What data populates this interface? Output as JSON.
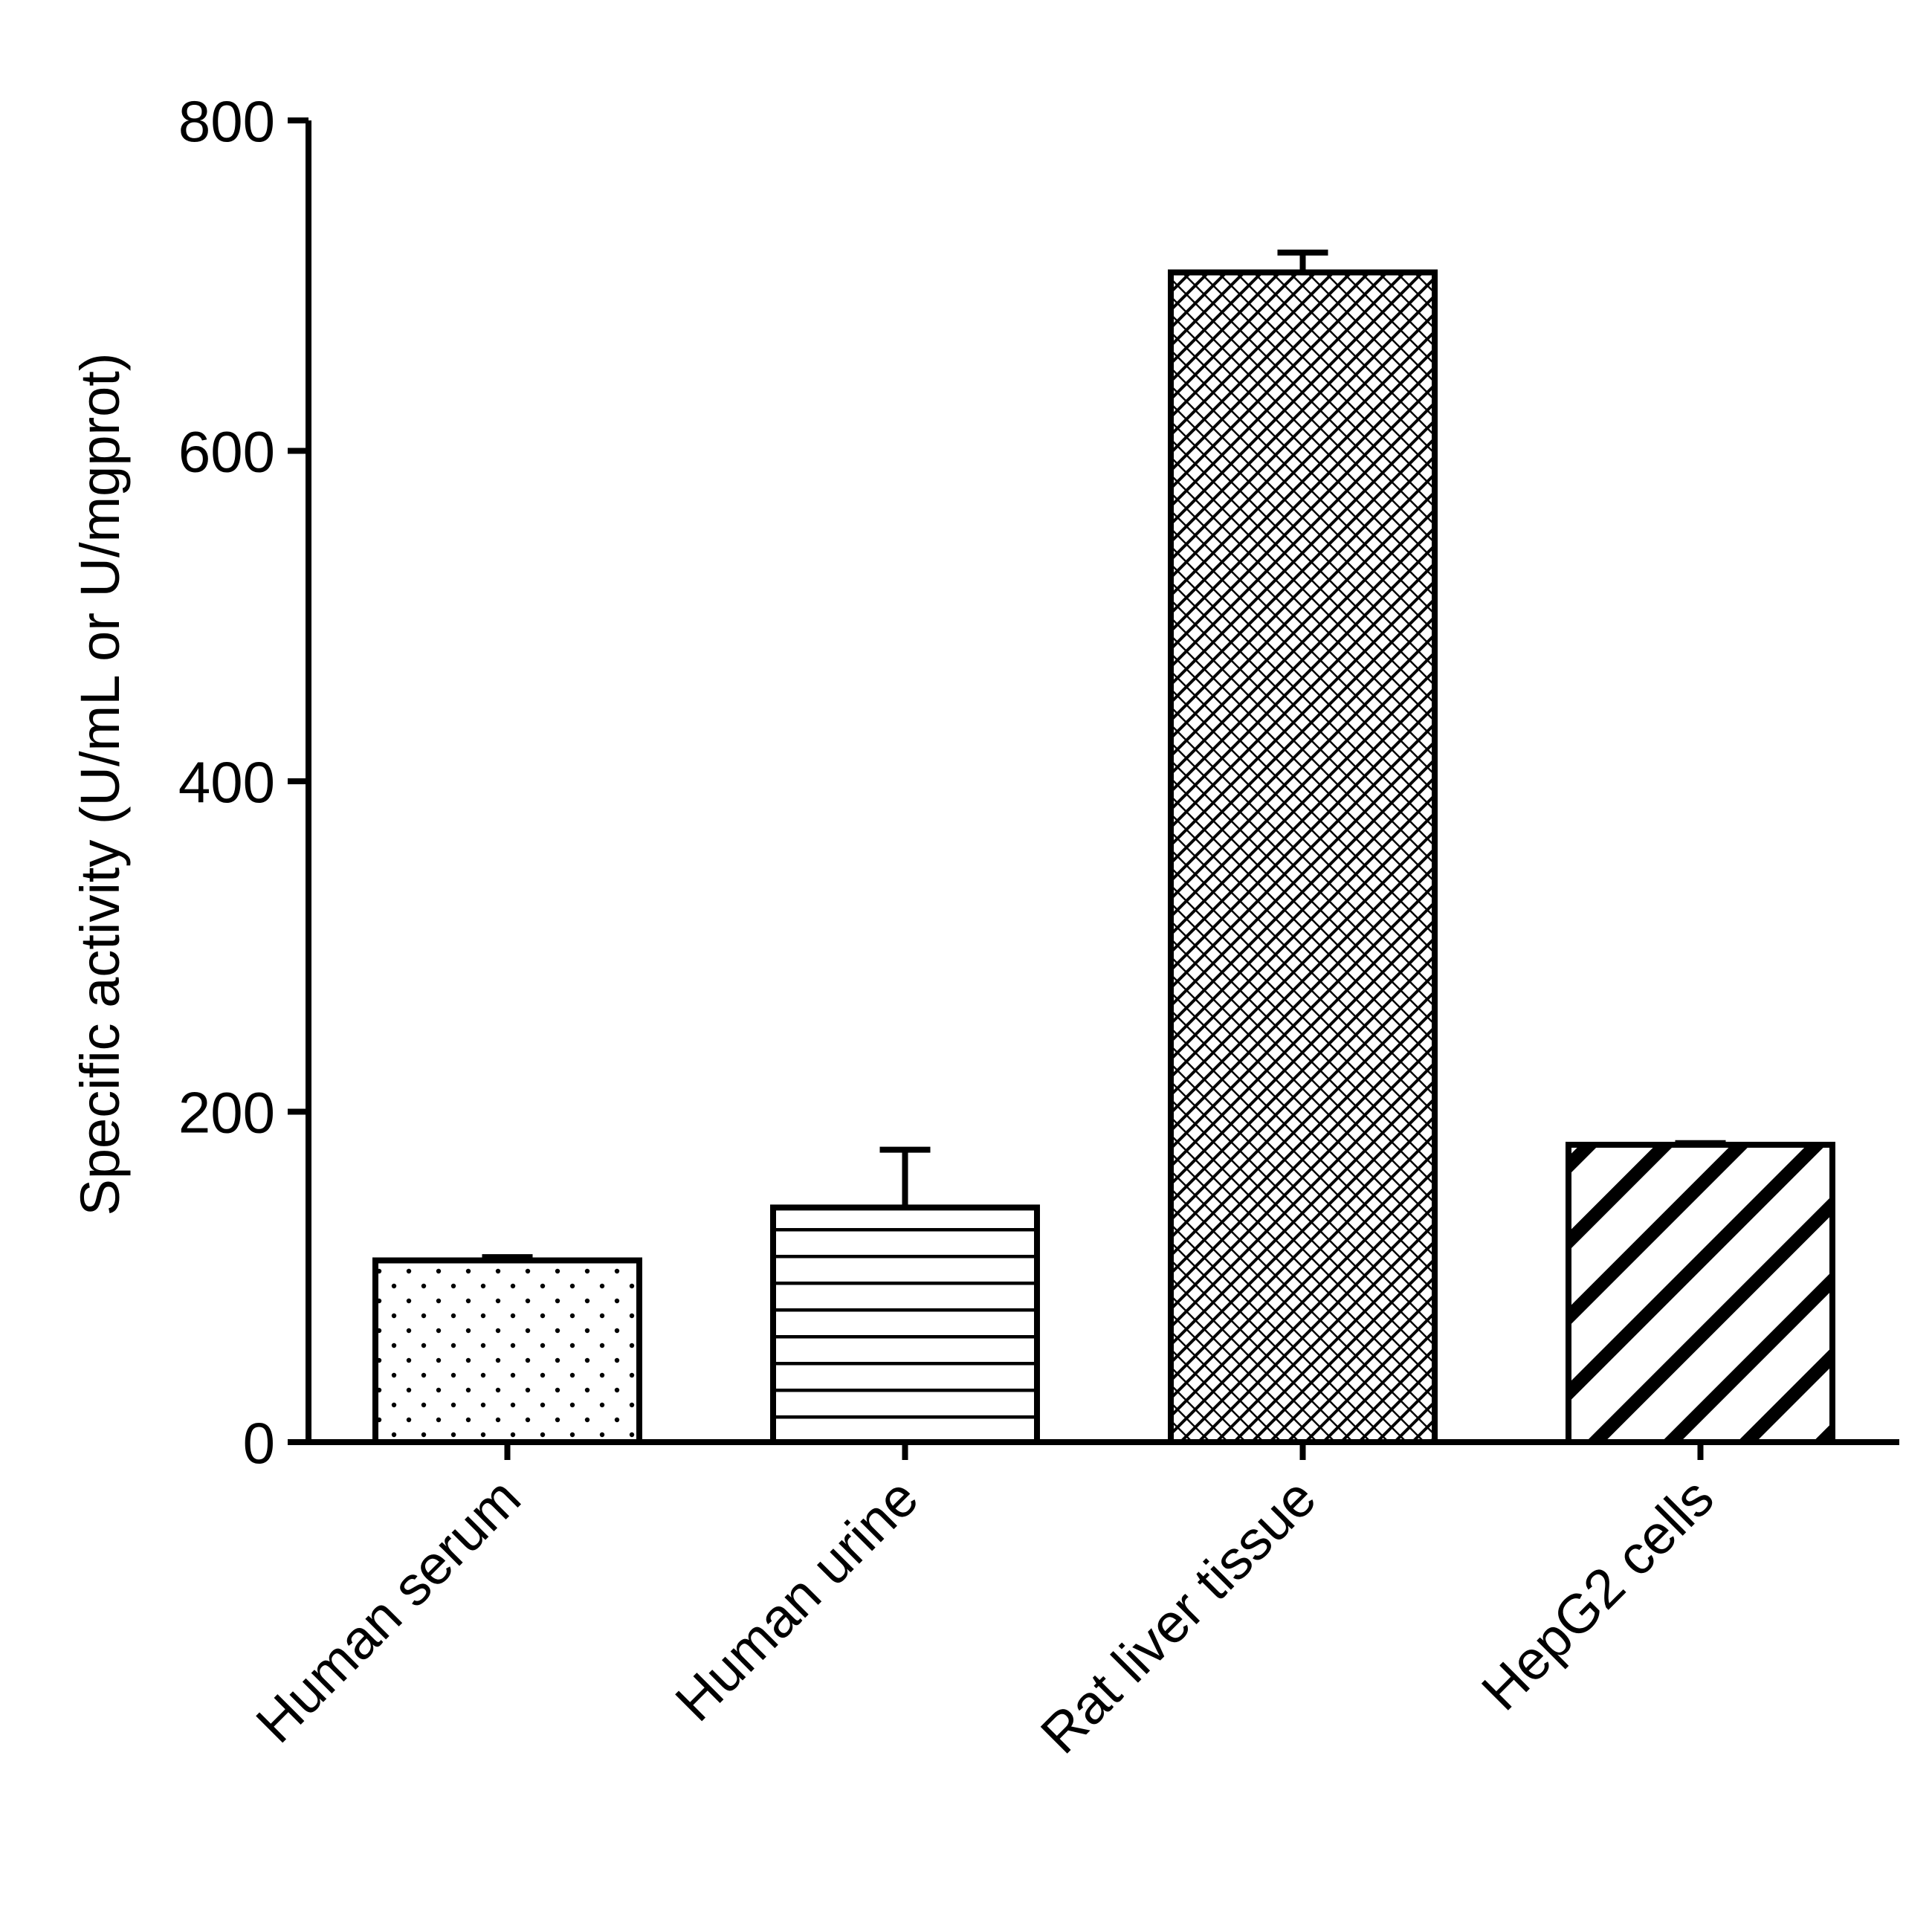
{
  "chart_data": {
    "type": "bar",
    "title": "",
    "xlabel": "",
    "ylabel": "Specific activity (U/mL or U/mgprot)",
    "ylim": [
      0,
      800
    ],
    "yticks": [
      0,
      200,
      400,
      600,
      800
    ],
    "categories": [
      "Human serum",
      "Human urine",
      "Rat liver tissue",
      "HepG2 cells"
    ],
    "values": [
      110,
      142,
      708,
      180
    ],
    "errors": [
      2,
      35,
      12,
      1
    ],
    "patterns": [
      "dots",
      "horizontal-lines",
      "crosshatch",
      "diagonal-stripes"
    ],
    "grid": false,
    "legend": "none",
    "colors": {
      "ink": "#000000",
      "background": "#ffffff"
    }
  }
}
